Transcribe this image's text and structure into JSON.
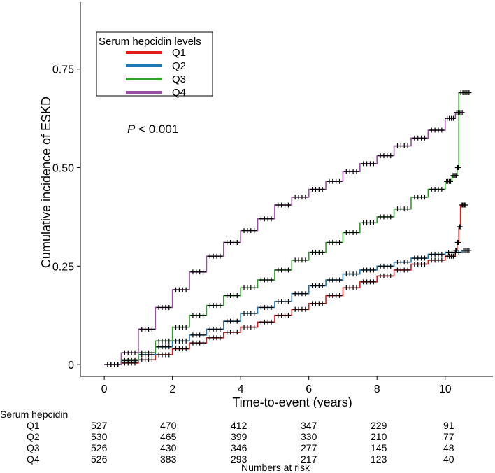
{
  "chart_data": {
    "type": "line",
    "title": "",
    "xlabel": "Time-to-event (years)",
    "ylabel": "Cumulative incidence of ESKD",
    "xlim": [
      -0.7,
      11.4
    ],
    "ylim": [
      -0.03,
      0.92
    ],
    "xticks": [
      0,
      2,
      4,
      6,
      8,
      10
    ],
    "xtick_labels": [
      "0",
      "2",
      "4",
      "6",
      "8",
      "10"
    ],
    "yticks": [
      0,
      0.25,
      0.5,
      0.75
    ],
    "ytick_labels": [
      "0",
      "0.25",
      "0.50",
      "0.75"
    ],
    "grid": false,
    "legend": {
      "title": "Serum hepcidin levels",
      "position": "top-left"
    },
    "annotation": {
      "p_label": "P",
      "p_rest": " < 0.001"
    },
    "series": [
      {
        "name": "Q1",
        "color": "#e31a1c",
        "x": [
          0,
          0.5,
          1,
          1.5,
          2,
          2.5,
          3,
          3.5,
          4,
          4.5,
          5,
          5.5,
          6,
          6.5,
          7,
          7.5,
          8,
          8.5,
          9,
          9.5,
          10,
          10.3,
          10.35,
          10.4,
          10.45,
          10.6
        ],
        "y": [
          0,
          0.004,
          0.012,
          0.025,
          0.04,
          0.055,
          0.068,
          0.082,
          0.095,
          0.108,
          0.125,
          0.14,
          0.155,
          0.175,
          0.195,
          0.21,
          0.225,
          0.24,
          0.255,
          0.265,
          0.275,
          0.29,
          0.31,
          0.35,
          0.405,
          0.405
        ]
      },
      {
        "name": "Q2",
        "color": "#1f78b4",
        "x": [
          0,
          0.5,
          1,
          1.5,
          2,
          2.5,
          3,
          3.5,
          4,
          4.5,
          5,
          5.5,
          6,
          6.5,
          7,
          7.5,
          8,
          8.5,
          9,
          9.5,
          10,
          10.5,
          10.7
        ],
        "y": [
          0,
          0.01,
          0.025,
          0.045,
          0.06,
          0.075,
          0.09,
          0.11,
          0.13,
          0.145,
          0.16,
          0.18,
          0.2,
          0.215,
          0.23,
          0.24,
          0.25,
          0.26,
          0.27,
          0.28,
          0.285,
          0.29,
          0.29
        ]
      },
      {
        "name": "Q3",
        "color": "#33a02c",
        "x": [
          0,
          0.5,
          1,
          1.5,
          2,
          2.5,
          3,
          3.5,
          4,
          4.5,
          5,
          5.5,
          6,
          6.5,
          7,
          7.5,
          8,
          8.5,
          9,
          9.5,
          10,
          10.2,
          10.35,
          10.4,
          10.7
        ],
        "y": [
          0,
          0.012,
          0.03,
          0.06,
          0.095,
          0.125,
          0.15,
          0.175,
          0.195,
          0.215,
          0.24,
          0.265,
          0.285,
          0.31,
          0.335,
          0.36,
          0.375,
          0.395,
          0.425,
          0.445,
          0.465,
          0.48,
          0.5,
          0.69,
          0.69
        ]
      },
      {
        "name": "Q4",
        "color": "#984ea3",
        "x": [
          0,
          0.5,
          1,
          1.5,
          2,
          2.5,
          3,
          3.5,
          4,
          4.5,
          5,
          5.5,
          6,
          6.5,
          7,
          7.5,
          8,
          8.5,
          9,
          9.5,
          10,
          10.3,
          10.5
        ],
        "y": [
          0,
          0.03,
          0.09,
          0.145,
          0.19,
          0.235,
          0.275,
          0.31,
          0.34,
          0.37,
          0.405,
          0.425,
          0.445,
          0.465,
          0.49,
          0.51,
          0.53,
          0.555,
          0.575,
          0.595,
          0.625,
          0.64,
          0.64
        ]
      }
    ]
  },
  "risk_table": {
    "header": "Serum hepcidin",
    "caption": "Numbers at risk",
    "times": [
      0,
      2,
      4,
      6,
      8,
      10
    ],
    "rows": [
      {
        "label": "Q1",
        "counts": [
          "527",
          "470",
          "412",
          "347",
          "229",
          "91"
        ]
      },
      {
        "label": "Q2",
        "counts": [
          "530",
          "465",
          "399",
          "330",
          "210",
          "77"
        ]
      },
      {
        "label": "Q3",
        "counts": [
          "526",
          "430",
          "346",
          "277",
          "145",
          "48"
        ]
      },
      {
        "label": "Q4",
        "counts": [
          "526",
          "383",
          "293",
          "217",
          "123",
          "40"
        ]
      }
    ]
  }
}
